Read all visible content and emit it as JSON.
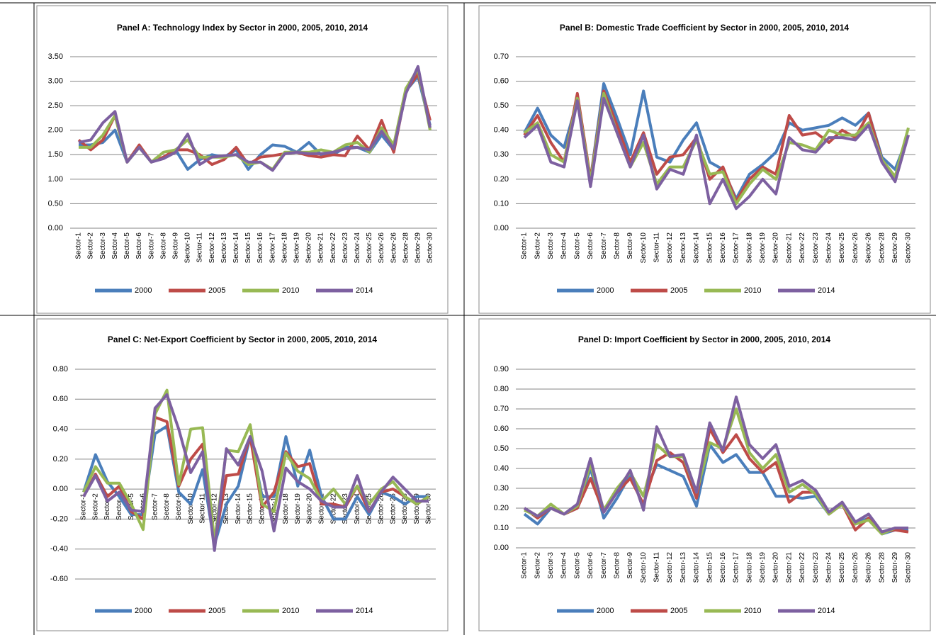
{
  "chart_data": [
    {
      "type": "line",
      "title": "Panel A: Technology Index by Sector in 2000, 2005, 2010, 2014",
      "categories": [
        "Sector-1",
        "Sector-2",
        "Sector-3",
        "Sector-4",
        "Sector-5",
        "Sector-6",
        "Sector-7",
        "Sector-8",
        "Sector-9",
        "Sector-10",
        "Sector-11",
        "Sector-12",
        "Sector-13",
        "Sector-14",
        "Sector-15",
        "Sector-16",
        "Sector-17",
        "Sector-18",
        "Sector-19",
        "Sector-20",
        "Sector-21",
        "Sector-22",
        "Sector-23",
        "Sector-24",
        "Sector-25",
        "Sector-26",
        "Sector-26",
        "Sector-28",
        "Sector-29",
        "Sector-30"
      ],
      "ylim": [
        0,
        3.5
      ],
      "yticks": [
        {
          "value": 0,
          "label": "0.00"
        },
        {
          "value": 0.5,
          "label": "0.50"
        },
        {
          "value": 1,
          "label": "1.00"
        },
        {
          "value": 1.5,
          "label": "1.50"
        },
        {
          "value": 2,
          "label": "2.00"
        },
        {
          "value": 2.5,
          "label": "2.50"
        },
        {
          "value": 3,
          "label": "3.00"
        },
        {
          "value": 3.5,
          "label": "3.50"
        }
      ],
      "grid": true,
      "legend": "bottom",
      "series": [
        {
          "name": "2000",
          "color": "#4a7ebb",
          "values": [
            1.7,
            1.7,
            1.75,
            2.0,
            1.35,
            1.65,
            1.35,
            1.45,
            1.6,
            1.2,
            1.4,
            1.5,
            1.45,
            1.6,
            1.2,
            1.5,
            1.7,
            1.67,
            1.55,
            1.75,
            1.5,
            1.5,
            1.65,
            1.65,
            1.55,
            1.9,
            1.6,
            2.8,
            3.1,
            2.1
          ]
        },
        {
          "name": "2005",
          "color": "#be4b48",
          "values": [
            1.8,
            1.6,
            1.8,
            2.3,
            1.35,
            1.7,
            1.35,
            1.45,
            1.6,
            1.6,
            1.5,
            1.3,
            1.4,
            1.65,
            1.3,
            1.45,
            1.48,
            1.52,
            1.55,
            1.48,
            1.45,
            1.5,
            1.48,
            1.88,
            1.6,
            2.2,
            1.55,
            2.8,
            3.15,
            2.2
          ]
        },
        {
          "name": "2010",
          "color": "#98b954",
          "values": [
            1.65,
            1.65,
            1.9,
            2.3,
            1.35,
            1.65,
            1.35,
            1.55,
            1.6,
            1.8,
            1.45,
            1.45,
            1.45,
            1.5,
            1.3,
            1.35,
            1.2,
            1.55,
            1.55,
            1.55,
            1.6,
            1.55,
            1.7,
            1.75,
            1.55,
            2.05,
            1.7,
            2.85,
            3.25,
            2.0
          ]
        },
        {
          "name": "2014",
          "color": "#7d60a0",
          "values": [
            1.75,
            1.8,
            2.15,
            2.38,
            1.35,
            1.65,
            1.35,
            1.42,
            1.55,
            1.92,
            1.3,
            1.45,
            1.48,
            1.5,
            1.35,
            1.35,
            1.18,
            1.52,
            1.55,
            1.52,
            1.52,
            1.55,
            1.62,
            1.65,
            1.6,
            1.98,
            1.62,
            2.75,
            3.3,
            2.05
          ]
        }
      ]
    },
    {
      "type": "line",
      "title": "Panel B: Domestic Trade Coefficient by Sector in 2000, 2005, 2010, 2014",
      "categories": [
        "Sector-1",
        "Sector-2",
        "Sector-3",
        "Sector-4",
        "Sector-5",
        "Sector-6",
        "Sector-7",
        "Sector-8",
        "Sector-9",
        "Sector-10",
        "Sector-11",
        "Sector-12",
        "Sector-13",
        "Sector-14",
        "Sector-15",
        "Sector-16",
        "Sector-17",
        "Sector-18",
        "Sector-19",
        "Sector-20",
        "Sector-21",
        "Sector-22",
        "Sector-23",
        "Sector-24",
        "Sector-25",
        "Sector-26",
        "Sector-26",
        "Sector-28",
        "Sector-29",
        "Sector-30"
      ],
      "ylim": [
        0,
        0.7
      ],
      "yticks": [
        {
          "value": 0,
          "label": "0.00"
        },
        {
          "value": 0.1,
          "label": "0.10"
        },
        {
          "value": 0.2,
          "label": "0.20"
        },
        {
          "value": 0.3,
          "label": "0.30"
        },
        {
          "value": 0.4,
          "label": "0.40"
        },
        {
          "value": 0.5,
          "label": "0.50"
        },
        {
          "value": 0.6,
          "label": "0.60"
        },
        {
          "value": 0.7,
          "label": "0.70"
        }
      ],
      "grid": true,
      "legend": "bottom",
      "series": [
        {
          "name": "2000",
          "color": "#4a7ebb",
          "values": [
            0.39,
            0.49,
            0.38,
            0.33,
            0.52,
            0.2,
            0.59,
            0.45,
            0.3,
            0.56,
            0.29,
            0.27,
            0.36,
            0.43,
            0.27,
            0.24,
            0.12,
            0.22,
            0.26,
            0.31,
            0.43,
            0.4,
            0.41,
            0.42,
            0.45,
            0.42,
            0.47,
            0.29,
            0.24,
            0.38
          ]
        },
        {
          "name": "2005",
          "color": "#be4b48",
          "values": [
            0.38,
            0.46,
            0.35,
            0.27,
            0.55,
            0.2,
            0.56,
            0.42,
            0.27,
            0.39,
            0.22,
            0.29,
            0.3,
            0.37,
            0.2,
            0.25,
            0.11,
            0.2,
            0.25,
            0.22,
            0.46,
            0.38,
            0.39,
            0.35,
            0.4,
            0.37,
            0.47,
            0.28,
            0.21,
            0.38
          ]
        },
        {
          "name": "2010",
          "color": "#98b954",
          "values": [
            0.39,
            0.43,
            0.3,
            0.27,
            0.53,
            0.19,
            0.55,
            0.39,
            0.25,
            0.35,
            0.18,
            0.25,
            0.25,
            0.36,
            0.22,
            0.23,
            0.1,
            0.18,
            0.24,
            0.2,
            0.35,
            0.34,
            0.32,
            0.4,
            0.38,
            0.38,
            0.43,
            0.28,
            0.21,
            0.41
          ]
        },
        {
          "name": "2014",
          "color": "#7d60a0",
          "values": [
            0.37,
            0.42,
            0.27,
            0.25,
            0.52,
            0.17,
            0.53,
            0.39,
            0.25,
            0.38,
            0.16,
            0.24,
            0.22,
            0.38,
            0.1,
            0.2,
            0.08,
            0.13,
            0.2,
            0.14,
            0.37,
            0.32,
            0.31,
            0.37,
            0.37,
            0.36,
            0.42,
            0.27,
            0.19,
            0.38
          ]
        }
      ]
    },
    {
      "type": "line",
      "title": "Panel C: Net-Export Coefficient by Sector in 2000, 2005, 2010, 2014",
      "categories": [
        "Sector-1",
        "Sector-2",
        "Sector-3",
        "Sector-4",
        "Sector-5",
        "Sector-6",
        "Sector-7",
        "Sector-8",
        "Sector-9",
        "Sector-10",
        "Sector-11",
        "Sector-12",
        "Sector-13",
        "Sector-14",
        "Sector-15",
        "Sector-16",
        "Sector-17",
        "Sector-18",
        "Sector-19",
        "Sector-20",
        "Sector-21",
        "Sector-22",
        "Sector-23",
        "Sector-24",
        "Sector-25",
        "Sector-26",
        "Sector-26",
        "Sector-28",
        "Sector-29",
        "Sector-30"
      ],
      "ylim": [
        -0.6,
        0.8
      ],
      "yticks": [
        {
          "value": -0.6,
          "label": "-0.60"
        },
        {
          "value": -0.4,
          "label": "-0.40"
        },
        {
          "value": -0.2,
          "label": "-0.20"
        },
        {
          "value": 0,
          "label": "0.00"
        },
        {
          "value": 0.2,
          "label": "0.20"
        },
        {
          "value": 0.4,
          "label": "0.40"
        },
        {
          "value": 0.6,
          "label": "0.60"
        },
        {
          "value": 0.8,
          "label": "0.80"
        }
      ],
      "grid": true,
      "legend": "bottom",
      "series": [
        {
          "name": "2000",
          "color": "#4a7ebb",
          "values": [
            -0.02,
            0.23,
            0.05,
            -0.05,
            -0.17,
            -0.17,
            0.37,
            0.42,
            -0.02,
            -0.1,
            0.13,
            -0.37,
            -0.1,
            0.02,
            0.35,
            -0.05,
            -0.05,
            0.35,
            0.02,
            0.26,
            -0.05,
            -0.2,
            -0.2,
            -0.05,
            -0.17,
            -0.02,
            -0.05,
            -0.1,
            -0.05,
            -0.05
          ]
        },
        {
          "name": "2005",
          "color": "#be4b48",
          "values": [
            -0.05,
            0.1,
            -0.05,
            0.02,
            -0.15,
            -0.2,
            0.48,
            0.45,
            0.02,
            0.2,
            0.3,
            -0.37,
            0.09,
            0.1,
            0.35,
            -0.12,
            -0.02,
            0.25,
            0.15,
            0.17,
            -0.1,
            -0.1,
            -0.12,
            0.02,
            -0.15,
            -0.02,
            0,
            -0.05,
            -0.1,
            -0.05
          ]
        },
        {
          "name": "2010",
          "color": "#98b954",
          "values": [
            -0.02,
            0.15,
            0.04,
            0.04,
            -0.1,
            -0.27,
            0.5,
            0.66,
            0.03,
            0.4,
            0.41,
            -0.35,
            0.26,
            0.25,
            0.43,
            -0.1,
            -0.15,
            0.24,
            0.12,
            0.07,
            -0.08,
            0,
            -0.1,
            0.02,
            -0.1,
            0,
            0.05,
            -0.05,
            -0.1,
            -0.05
          ]
        },
        {
          "name": "2014",
          "color": "#7d60a0",
          "values": [
            -0.05,
            0.09,
            -0.08,
            -0.02,
            -0.14,
            -0.15,
            0.54,
            0.63,
            0.4,
            0.11,
            0.25,
            -0.41,
            0.27,
            0.16,
            0.35,
            0.12,
            -0.28,
            0.14,
            0.05,
            0,
            -0.08,
            -0.12,
            -0.12,
            0.09,
            -0.15,
            -0.02,
            0.08,
            0,
            -0.08,
            -0.08
          ]
        }
      ]
    },
    {
      "type": "line",
      "title": "Panel D: Import Coefficient by Sector in 2000, 2005, 2010, 2014",
      "categories": [
        "Sector-1",
        "Sector-2",
        "Sector-3",
        "Sector-4",
        "Sector-5",
        "Sector-6",
        "Sector-7",
        "Sector-8",
        "Sector-9",
        "Sector-10",
        "Sector-11",
        "Sector-12",
        "Sector-13",
        "Sector-14",
        "Sector-15",
        "Sector-16",
        "Sector-17",
        "Sector-18",
        "Sector-19",
        "Sector-20",
        "Sector-21",
        "Sector-22",
        "Sector-23",
        "Sector-24",
        "Sector-25",
        "Sector-26",
        "Sector-26",
        "Sector-28",
        "Sector-29",
        "Sector-30"
      ],
      "ylim": [
        0,
        0.9
      ],
      "yticks": [
        {
          "value": 0,
          "label": "0.00"
        },
        {
          "value": 0.1,
          "label": "0.10"
        },
        {
          "value": 0.2,
          "label": "0.20"
        },
        {
          "value": 0.3,
          "label": "0.30"
        },
        {
          "value": 0.4,
          "label": "0.40"
        },
        {
          "value": 0.5,
          "label": "0.50"
        },
        {
          "value": 0.6,
          "label": "0.60"
        },
        {
          "value": 0.7,
          "label": "0.70"
        },
        {
          "value": 0.8,
          "label": "0.80"
        },
        {
          "value": 0.9,
          "label": "0.90"
        }
      ],
      "grid": true,
      "legend": "bottom",
      "series": [
        {
          "name": "2000",
          "color": "#4a7ebb",
          "values": [
            0.17,
            0.12,
            0.2,
            0.17,
            0.2,
            0.4,
            0.15,
            0.25,
            0.37,
            0.26,
            0.42,
            0.39,
            0.36,
            0.21,
            0.52,
            0.43,
            0.47,
            0.38,
            0.38,
            0.26,
            0.26,
            0.25,
            0.26,
            0.17,
            0.22,
            0.12,
            0.15,
            0.07,
            0.09,
            0.09
          ]
        },
        {
          "name": "2005",
          "color": "#be4b48",
          "values": [
            0.2,
            0.15,
            0.2,
            0.17,
            0.2,
            0.35,
            0.18,
            0.28,
            0.35,
            0.22,
            0.44,
            0.48,
            0.43,
            0.25,
            0.6,
            0.48,
            0.57,
            0.45,
            0.38,
            0.43,
            0.23,
            0.28,
            0.28,
            0.17,
            0.22,
            0.09,
            0.15,
            0.08,
            0.09,
            0.08
          ]
        },
        {
          "name": "2010",
          "color": "#98b954",
          "values": [
            0.19,
            0.16,
            0.22,
            0.17,
            0.21,
            0.42,
            0.19,
            0.3,
            0.38,
            0.26,
            0.52,
            0.46,
            0.46,
            0.28,
            0.53,
            0.5,
            0.7,
            0.48,
            0.4,
            0.47,
            0.28,
            0.32,
            0.27,
            0.17,
            0.22,
            0.12,
            0.14,
            0.07,
            0.1,
            0.1
          ]
        },
        {
          "name": "2014",
          "color": "#7d60a0",
          "values": [
            0.2,
            0.16,
            0.2,
            0.17,
            0.22,
            0.45,
            0.18,
            0.28,
            0.39,
            0.19,
            0.61,
            0.46,
            0.47,
            0.28,
            0.63,
            0.49,
            0.76,
            0.52,
            0.45,
            0.52,
            0.31,
            0.34,
            0.29,
            0.18,
            0.23,
            0.13,
            0.17,
            0.08,
            0.1,
            0.1
          ]
        }
      ]
    }
  ]
}
